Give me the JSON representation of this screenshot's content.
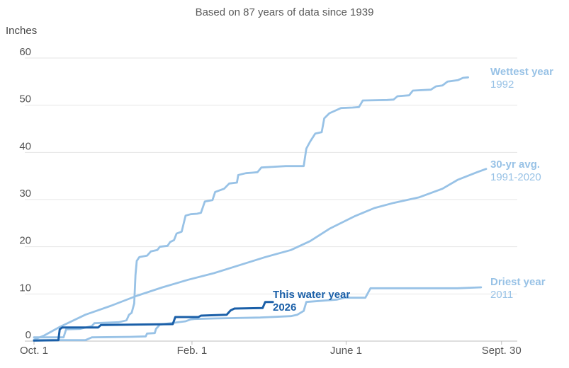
{
  "chart_data": {
    "type": "line",
    "subtitle": "Based on 87 years of data since 1939",
    "ylabel": "Inches",
    "ylim": [
      0,
      62
    ],
    "yticks": [
      0,
      10,
      20,
      30,
      40,
      50,
      60
    ],
    "xlim": [
      0,
      365
    ],
    "xticks": [
      {
        "label": "Oct. 1",
        "day": 0
      },
      {
        "label": "Feb. 1",
        "day": 123
      },
      {
        "label": "June 1",
        "day": 243
      },
      {
        "label": "Sept. 30",
        "day": 364
      }
    ],
    "colors": {
      "light": "#98c2e6",
      "dark": "#1a5fa8"
    },
    "series": [
      {
        "name": "Wettest year",
        "sub": "1992",
        "color": "#98c2e6",
        "points": [
          [
            0,
            0.8
          ],
          [
            8,
            0.8
          ],
          [
            16,
            0.8
          ],
          [
            23,
            0.8
          ],
          [
            25,
            2.5
          ],
          [
            36,
            2.6
          ],
          [
            45,
            3.2
          ],
          [
            47,
            3.8
          ],
          [
            66,
            4.0
          ],
          [
            72,
            4.4
          ],
          [
            74,
            5.6
          ],
          [
            76,
            6.0
          ],
          [
            78,
            8.0
          ],
          [
            79,
            14.0
          ],
          [
            80,
            17.0
          ],
          [
            82,
            17.8
          ],
          [
            88,
            18.1
          ],
          [
            91,
            19.0
          ],
          [
            96,
            19.3
          ],
          [
            98,
            20.0
          ],
          [
            104,
            20.2
          ],
          [
            106,
            21.0
          ],
          [
            109,
            21.4
          ],
          [
            111,
            22.8
          ],
          [
            115,
            23.2
          ],
          [
            118,
            26.6
          ],
          [
            122,
            26.9
          ],
          [
            127,
            27.0
          ],
          [
            130,
            27.2
          ],
          [
            133,
            29.6
          ],
          [
            139,
            29.9
          ],
          [
            141,
            31.6
          ],
          [
            144,
            31.9
          ],
          [
            148,
            32.3
          ],
          [
            152,
            33.4
          ],
          [
            158,
            33.6
          ],
          [
            159,
            35.2
          ],
          [
            165,
            35.6
          ],
          [
            170,
            35.7
          ],
          [
            174,
            35.8
          ],
          [
            177,
            36.8
          ],
          [
            196,
            37.1
          ],
          [
            210,
            37.1
          ],
          [
            212,
            40.8
          ],
          [
            215,
            42.3
          ],
          [
            219,
            44.0
          ],
          [
            224,
            44.3
          ],
          [
            226,
            47.2
          ],
          [
            230,
            48.3
          ],
          [
            235,
            48.9
          ],
          [
            239,
            49.4
          ],
          [
            248,
            49.5
          ],
          [
            253,
            49.6
          ],
          [
            256,
            51.0
          ],
          [
            275,
            51.1
          ],
          [
            280,
            51.2
          ],
          [
            283,
            51.9
          ],
          [
            292,
            52.1
          ],
          [
            295,
            53.1
          ],
          [
            309,
            53.3
          ],
          [
            313,
            54.0
          ],
          [
            318,
            54.2
          ],
          [
            322,
            55.0
          ],
          [
            330,
            55.3
          ],
          [
            334,
            55.8
          ],
          [
            338,
            55.9
          ]
        ]
      },
      {
        "name": "30-yr avg.",
        "sub": "1991-2020",
        "color": "#98c2e6",
        "points": [
          [
            0,
            0.3
          ],
          [
            8,
            1.2
          ],
          [
            20,
            3.0
          ],
          [
            40,
            5.6
          ],
          [
            60,
            7.5
          ],
          [
            80,
            9.6
          ],
          [
            100,
            11.4
          ],
          [
            120,
            13.0
          ],
          [
            140,
            14.4
          ],
          [
            160,
            16.1
          ],
          [
            180,
            17.8
          ],
          [
            200,
            19.3
          ],
          [
            215,
            21.2
          ],
          [
            230,
            23.8
          ],
          [
            250,
            26.5
          ],
          [
            265,
            28.2
          ],
          [
            280,
            29.3
          ],
          [
            300,
            30.5
          ],
          [
            318,
            32.3
          ],
          [
            330,
            34.2
          ],
          [
            345,
            35.8
          ],
          [
            352,
            36.5
          ]
        ]
      },
      {
        "name": "Driest year",
        "sub": "2011",
        "color": "#98c2e6",
        "points": [
          [
            0,
            0.2
          ],
          [
            40,
            0.2
          ],
          [
            45,
            0.8
          ],
          [
            75,
            0.9
          ],
          [
            87,
            1.0
          ],
          [
            88,
            1.6
          ],
          [
            94,
            1.7
          ],
          [
            95,
            2.6
          ],
          [
            98,
            3.5
          ],
          [
            118,
            4.2
          ],
          [
            122,
            4.6
          ],
          [
            125,
            4.7
          ],
          [
            140,
            4.8
          ],
          [
            176,
            5.0
          ],
          [
            200,
            5.3
          ],
          [
            205,
            5.6
          ],
          [
            210,
            6.4
          ],
          [
            212,
            8.3
          ],
          [
            236,
            8.8
          ],
          [
            242,
            9.2
          ],
          [
            258,
            9.2
          ],
          [
            262,
            11.2
          ],
          [
            330,
            11.2
          ],
          [
            348,
            11.4
          ]
        ]
      },
      {
        "name": "This water year",
        "sub": "2026",
        "color": "#1a5fa8",
        "points": [
          [
            0,
            0.1
          ],
          [
            19,
            0.2
          ],
          [
            20,
            2.5
          ],
          [
            22,
            2.9
          ],
          [
            50,
            2.9
          ],
          [
            52,
            3.4
          ],
          [
            108,
            3.6
          ],
          [
            110,
            5.1
          ],
          [
            128,
            5.1
          ],
          [
            130,
            5.4
          ],
          [
            150,
            5.6
          ],
          [
            153,
            6.5
          ],
          [
            156,
            6.9
          ],
          [
            178,
            7.0
          ],
          [
            180,
            8.3
          ],
          [
            186,
            8.3
          ]
        ]
      }
    ]
  }
}
